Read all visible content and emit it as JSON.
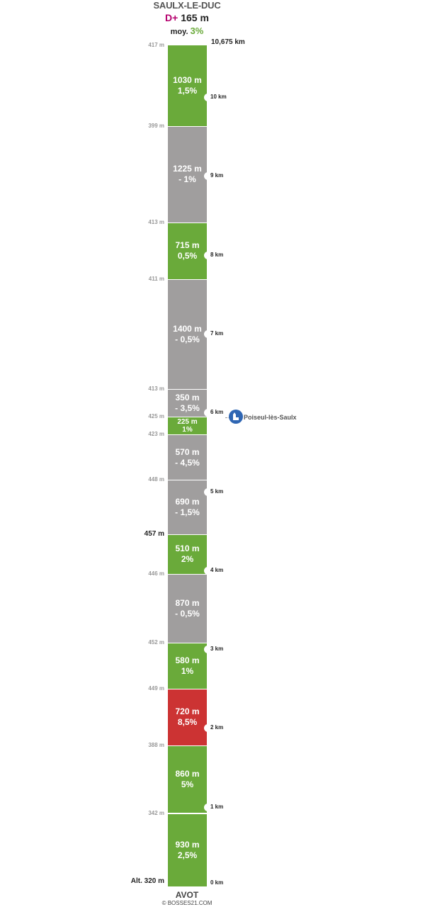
{
  "header": {
    "summit_name": "SAULX-LE-DUC",
    "gain_prefix": "D+",
    "gain_value": "165 m",
    "avg_label": "moy.",
    "avg_value": "3%",
    "total_distance": "10,675 km"
  },
  "footer": {
    "start_name": "AVOT",
    "credit": "© BOSSES21.COM"
  },
  "colors": {
    "green": "#6aaa3a",
    "grey": "#a09e9e",
    "red": "#cc3333",
    "dplus": "#b5006e",
    "village_icon": "#2f66b3"
  },
  "waypoint": {
    "name": "Poiseul-lès-Saulx",
    "icon": "church-icon",
    "km": 6
  },
  "scale": {
    "total_km": 10.675
  },
  "segments": [
    {
      "length": "930 m",
      "grade": "2,5%",
      "color": "green",
      "start_km": 0.0,
      "end_km": 0.93
    },
    {
      "length": "860 m",
      "grade": "5%",
      "color": "green",
      "start_km": 0.93,
      "end_km": 1.79
    },
    {
      "length": "720 m",
      "grade": "8,5%",
      "color": "red",
      "start_km": 1.79,
      "end_km": 2.51
    },
    {
      "length": "580 m",
      "grade": "1%",
      "color": "green",
      "start_km": 2.51,
      "end_km": 3.09
    },
    {
      "length": "870 m",
      "grade": "- 0,5%",
      "color": "grey",
      "start_km": 3.09,
      "end_km": 3.96
    },
    {
      "length": "510 m",
      "grade": "2%",
      "color": "green",
      "start_km": 3.96,
      "end_km": 4.47
    },
    {
      "length": "690 m",
      "grade": "- 1,5%",
      "color": "grey",
      "start_km": 4.47,
      "end_km": 5.16
    },
    {
      "length": "570 m",
      "grade": "- 4,5%",
      "color": "grey",
      "start_km": 5.16,
      "end_km": 5.73
    },
    {
      "length": "225 m",
      "grade": "1%",
      "color": "green",
      "start_km": 5.73,
      "end_km": 5.955,
      "small": true
    },
    {
      "length": "350 m",
      "grade": "- 3,5%",
      "color": "grey",
      "start_km": 5.955,
      "end_km": 6.305
    },
    {
      "length": "1400 m",
      "grade": "- 0,5%",
      "color": "grey",
      "start_km": 6.305,
      "end_km": 7.705
    },
    {
      "length": "715 m",
      "grade": "0,5%",
      "color": "green",
      "start_km": 7.705,
      "end_km": 8.42
    },
    {
      "length": "1225 m",
      "grade": "- 1%",
      "color": "grey",
      "start_km": 8.42,
      "end_km": 9.645
    },
    {
      "length": "1030 m",
      "grade": "1,5%",
      "color": "green",
      "start_km": 9.645,
      "end_km": 10.675
    }
  ],
  "altitudes": [
    {
      "text": "Alt. 320 m",
      "km": 0.0,
      "strong": true
    },
    {
      "text": "342 m",
      "km": 0.93
    },
    {
      "text": "388 m",
      "km": 1.79
    },
    {
      "text": "449 m",
      "km": 2.51
    },
    {
      "text": "452 m",
      "km": 3.09
    },
    {
      "text": "446 m",
      "km": 3.96
    },
    {
      "text": "457 m",
      "km": 4.47,
      "strong": true
    },
    {
      "text": "448 m",
      "km": 5.16
    },
    {
      "text": "423 m",
      "km": 5.73
    },
    {
      "text": "425 m",
      "km": 5.955
    },
    {
      "text": "413 m",
      "km": 6.305
    },
    {
      "text": "411 m",
      "km": 7.705
    },
    {
      "text": "413 m",
      "km": 8.42
    },
    {
      "text": "399 m",
      "km": 9.645
    },
    {
      "text": "417 m",
      "km": 10.675
    }
  ],
  "km_markers": [
    {
      "label": "0 km",
      "km": 0
    },
    {
      "label": "1 km",
      "km": 1
    },
    {
      "label": "2 km",
      "km": 2
    },
    {
      "label": "3 km",
      "km": 3
    },
    {
      "label": "4 km",
      "km": 4
    },
    {
      "label": "5 km",
      "km": 5
    },
    {
      "label": "6 km",
      "km": 6
    },
    {
      "label": "7 km",
      "km": 7
    },
    {
      "label": "8 km",
      "km": 8
    },
    {
      "label": "9 km",
      "km": 9
    },
    {
      "label": "10 km",
      "km": 10
    }
  ]
}
